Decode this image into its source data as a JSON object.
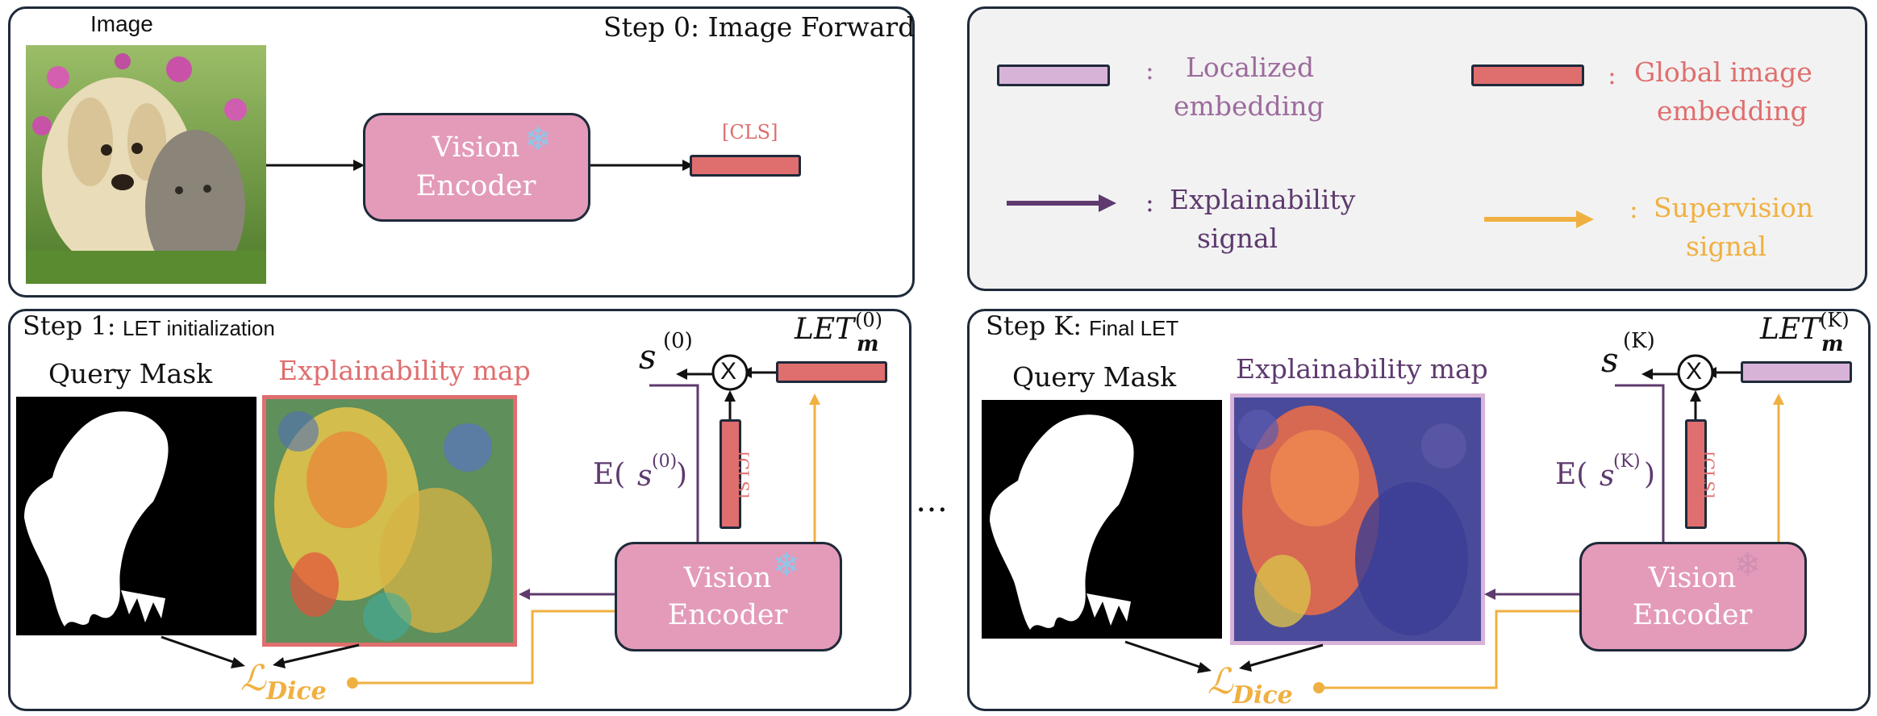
{
  "step0": {
    "title": "Step 0: Image Forward",
    "image_label": "Image",
    "encoder_line1": "Vision",
    "encoder_line2": "Encoder",
    "cls_label": "[CLS]"
  },
  "legend": {
    "localized_colon": ":",
    "localized_l1": "Localized",
    "localized_l2": "embedding",
    "global_colon": ":",
    "global_l1": "Global image",
    "global_l2": "embedding",
    "explain_colon": ":",
    "explain_l1": "Explainability",
    "explain_l2": "signal",
    "super_colon": ":",
    "super_l1": "Supervision",
    "super_l2": "signal",
    "colors": {
      "localized": "#d8b3d8",
      "global": "#df6e6e",
      "explainability": "#5e3a6e",
      "supervision": "#f0b041"
    }
  },
  "step1": {
    "title_main": "Step 1:",
    "title_sub": "LET initialization",
    "query_mask": "Query Mask",
    "explain_map": "Explainability map",
    "s_label": "s",
    "s_sup": "(0)",
    "let_label": "LET",
    "let_sub": "m",
    "let_sup": "(0)",
    "times": "X",
    "e_label": "E(",
    "e_s": "s",
    "e_sup": "(0)",
    "e_close": ")",
    "cls": "[CLS]",
    "encoder_line1": "Vision",
    "encoder_line2": "Encoder",
    "loss": "ℒ",
    "loss_sub": "Dice"
  },
  "ellipsis": "…",
  "stepK": {
    "title_main": "Step K:",
    "title_sub": "Final LET",
    "query_mask": "Query Mask",
    "explain_map": "Explainability map",
    "s_label": "s",
    "s_sup": "(K)",
    "let_label": "LET",
    "let_sub": "m",
    "let_sup": "(K)",
    "times": "X",
    "e_label": "E(",
    "e_s": "s",
    "e_sup": "(K)",
    "e_close": ")",
    "cls": "[CLS]",
    "encoder_line1": "Vision",
    "encoder_line2": "Encoder",
    "loss": "ℒ",
    "loss_sub": "Dice"
  }
}
